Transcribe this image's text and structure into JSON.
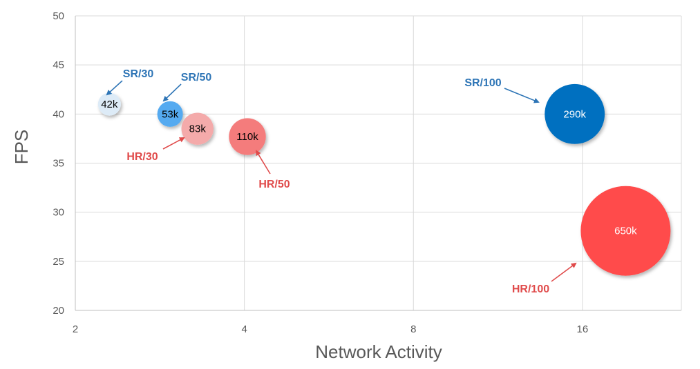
{
  "chart_data": {
    "type": "bubble",
    "xlabel": "Network Activity",
    "ylabel": "FPS",
    "x_scale": "log2",
    "xlim": [
      2,
      24
    ],
    "ylim": [
      20,
      50
    ],
    "x_ticks": [
      2,
      4,
      8,
      16
    ],
    "y_ticks": [
      20,
      25,
      30,
      35,
      40,
      45,
      50
    ],
    "grid": true,
    "points": [
      {
        "label": "42k",
        "annotation": "SR/30",
        "x": 2.3,
        "y": 41,
        "size": 42,
        "fill": "#DDEBF7",
        "text_color": "#000000",
        "arrow_color": "#2E75B6"
      },
      {
        "label": "53k",
        "annotation": "SR/50",
        "x": 2.95,
        "y": 40,
        "size": 53,
        "fill": "#55AAF0",
        "text_color": "#000000",
        "arrow_color": "#2E75B6"
      },
      {
        "label": "83k",
        "annotation": "HR/30",
        "x": 3.3,
        "y": 38.5,
        "size": 83,
        "fill": "#F4AAAA",
        "text_color": "#000000",
        "arrow_color": "#E04B4B"
      },
      {
        "label": "110k",
        "annotation": "HR/50",
        "x": 4.05,
        "y": 37.7,
        "size": 110,
        "fill": "#F47C7C",
        "text_color": "#000000",
        "arrow_color": "#E04B4B"
      },
      {
        "label": "290k",
        "annotation": "SR/100",
        "x": 15.5,
        "y": 40,
        "size": 290,
        "fill": "#0070C0",
        "text_color": "#ffffff",
        "arrow_color": "#2E75B6"
      },
      {
        "label": "650k",
        "annotation": "HR/100",
        "x": 19.1,
        "y": 28.1,
        "size": 650,
        "fill": "#FF4B4B",
        "text_color": "#ffffff",
        "arrow_color": "#E04B4B"
      }
    ]
  }
}
